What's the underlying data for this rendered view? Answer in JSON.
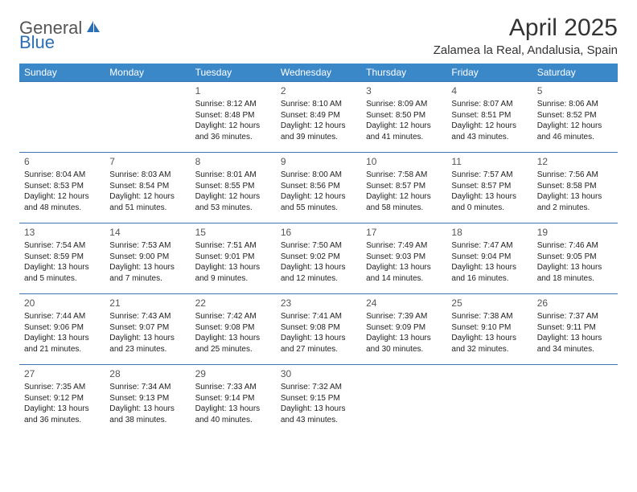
{
  "brand": {
    "part1": "General",
    "part2": "Blue",
    "accent": "#2c6fb5",
    "gray": "#666"
  },
  "title": "April 2025",
  "location": "Zalamea la Real, Andalusia, Spain",
  "header_bg": "#3b88c9",
  "border_color": "#3b78b5",
  "day_headers": [
    "Sunday",
    "Monday",
    "Tuesday",
    "Wednesday",
    "Thursday",
    "Friday",
    "Saturday"
  ],
  "weeks": [
    [
      null,
      null,
      {
        "n": "1",
        "sr": "8:12 AM",
        "ss": "8:48 PM",
        "dl": "12 hours and 36 minutes."
      },
      {
        "n": "2",
        "sr": "8:10 AM",
        "ss": "8:49 PM",
        "dl": "12 hours and 39 minutes."
      },
      {
        "n": "3",
        "sr": "8:09 AM",
        "ss": "8:50 PM",
        "dl": "12 hours and 41 minutes."
      },
      {
        "n": "4",
        "sr": "8:07 AM",
        "ss": "8:51 PM",
        "dl": "12 hours and 43 minutes."
      },
      {
        "n": "5",
        "sr": "8:06 AM",
        "ss": "8:52 PM",
        "dl": "12 hours and 46 minutes."
      }
    ],
    [
      {
        "n": "6",
        "sr": "8:04 AM",
        "ss": "8:53 PM",
        "dl": "12 hours and 48 minutes."
      },
      {
        "n": "7",
        "sr": "8:03 AM",
        "ss": "8:54 PM",
        "dl": "12 hours and 51 minutes."
      },
      {
        "n": "8",
        "sr": "8:01 AM",
        "ss": "8:55 PM",
        "dl": "12 hours and 53 minutes."
      },
      {
        "n": "9",
        "sr": "8:00 AM",
        "ss": "8:56 PM",
        "dl": "12 hours and 55 minutes."
      },
      {
        "n": "10",
        "sr": "7:58 AM",
        "ss": "8:57 PM",
        "dl": "12 hours and 58 minutes."
      },
      {
        "n": "11",
        "sr": "7:57 AM",
        "ss": "8:57 PM",
        "dl": "13 hours and 0 minutes."
      },
      {
        "n": "12",
        "sr": "7:56 AM",
        "ss": "8:58 PM",
        "dl": "13 hours and 2 minutes."
      }
    ],
    [
      {
        "n": "13",
        "sr": "7:54 AM",
        "ss": "8:59 PM",
        "dl": "13 hours and 5 minutes."
      },
      {
        "n": "14",
        "sr": "7:53 AM",
        "ss": "9:00 PM",
        "dl": "13 hours and 7 minutes."
      },
      {
        "n": "15",
        "sr": "7:51 AM",
        "ss": "9:01 PM",
        "dl": "13 hours and 9 minutes."
      },
      {
        "n": "16",
        "sr": "7:50 AM",
        "ss": "9:02 PM",
        "dl": "13 hours and 12 minutes."
      },
      {
        "n": "17",
        "sr": "7:49 AM",
        "ss": "9:03 PM",
        "dl": "13 hours and 14 minutes."
      },
      {
        "n": "18",
        "sr": "7:47 AM",
        "ss": "9:04 PM",
        "dl": "13 hours and 16 minutes."
      },
      {
        "n": "19",
        "sr": "7:46 AM",
        "ss": "9:05 PM",
        "dl": "13 hours and 18 minutes."
      }
    ],
    [
      {
        "n": "20",
        "sr": "7:44 AM",
        "ss": "9:06 PM",
        "dl": "13 hours and 21 minutes."
      },
      {
        "n": "21",
        "sr": "7:43 AM",
        "ss": "9:07 PM",
        "dl": "13 hours and 23 minutes."
      },
      {
        "n": "22",
        "sr": "7:42 AM",
        "ss": "9:08 PM",
        "dl": "13 hours and 25 minutes."
      },
      {
        "n": "23",
        "sr": "7:41 AM",
        "ss": "9:08 PM",
        "dl": "13 hours and 27 minutes."
      },
      {
        "n": "24",
        "sr": "7:39 AM",
        "ss": "9:09 PM",
        "dl": "13 hours and 30 minutes."
      },
      {
        "n": "25",
        "sr": "7:38 AM",
        "ss": "9:10 PM",
        "dl": "13 hours and 32 minutes."
      },
      {
        "n": "26",
        "sr": "7:37 AM",
        "ss": "9:11 PM",
        "dl": "13 hours and 34 minutes."
      }
    ],
    [
      {
        "n": "27",
        "sr": "7:35 AM",
        "ss": "9:12 PM",
        "dl": "13 hours and 36 minutes."
      },
      {
        "n": "28",
        "sr": "7:34 AM",
        "ss": "9:13 PM",
        "dl": "13 hours and 38 minutes."
      },
      {
        "n": "29",
        "sr": "7:33 AM",
        "ss": "9:14 PM",
        "dl": "13 hours and 40 minutes."
      },
      {
        "n": "30",
        "sr": "7:32 AM",
        "ss": "9:15 PM",
        "dl": "13 hours and 43 minutes."
      },
      null,
      null,
      null
    ]
  ],
  "labels": {
    "sunrise": "Sunrise: ",
    "sunset": "Sunset: ",
    "daylight": "Daylight: "
  }
}
